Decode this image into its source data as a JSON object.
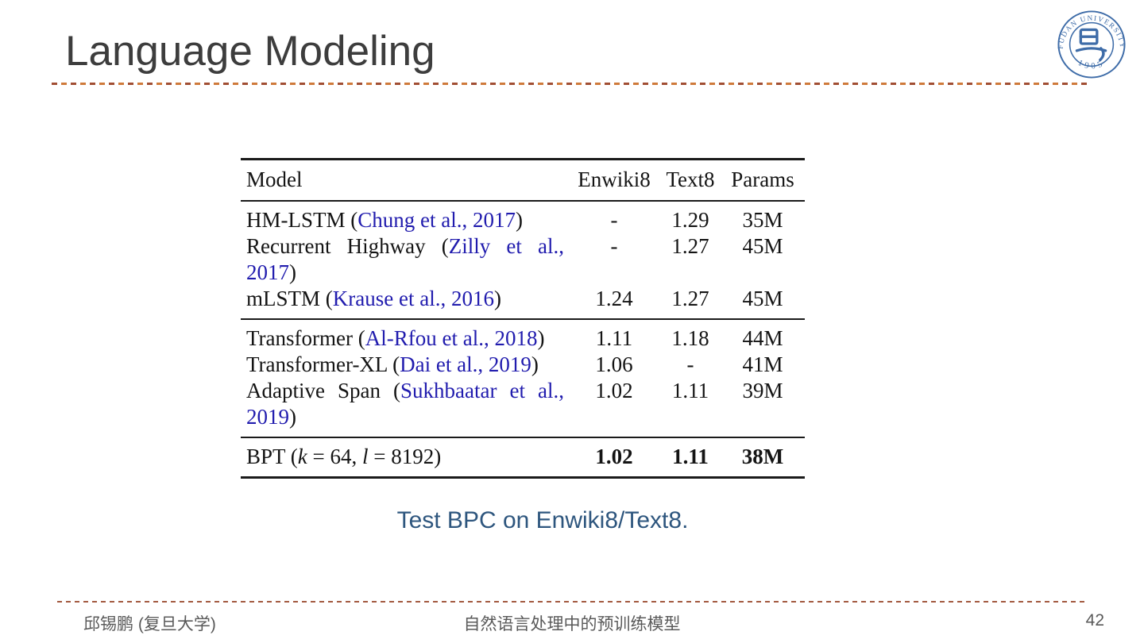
{
  "slide": {
    "title": "Language Modeling",
    "caption": "Test BPC on Enwiki8/Text8.",
    "page_number": "42",
    "footer_left": "邱锡鹏 (复旦大学)",
    "footer_center": "自然语言处理中的预训练模型",
    "accent_color": "#c2632f",
    "caption_color": "#2e567e"
  },
  "logo": {
    "name": "fudan-university-seal",
    "ring_text": "FUDAN UNIVERSITY",
    "year": "1905",
    "color": "#3e6ca8"
  },
  "chart_data": {
    "type": "table",
    "title": "Test BPC on Enwiki8/Text8.",
    "columns": [
      "Model",
      "Enwiki8",
      "Text8",
      "Params"
    ],
    "rows": [
      [
        "HM-LSTM (Chung et al., 2017)",
        "-",
        "1.29",
        "35M"
      ],
      [
        "Recurrent Highway (Zilly et al., 2017)",
        "-",
        "1.27",
        "45M"
      ],
      [
        "mLSTM (Krause et al., 2016)",
        "1.24",
        "1.27",
        "45M"
      ],
      [
        "Transformer (Al-Rfou et al., 2018)",
        "1.11",
        "1.18",
        "44M"
      ],
      [
        "Transformer-XL (Dai et al., 2019)",
        "1.06",
        "-",
        "41M"
      ],
      [
        "Adaptive Span (Sukhbaatar et al., 2019)",
        "1.02",
        "1.11",
        "39M"
      ],
      [
        "BPT (k = 64, l = 8192)",
        "1.02",
        "1.11",
        "38M"
      ]
    ]
  },
  "table": {
    "headers": [
      "Model",
      "Enwiki8",
      "Text8",
      "Params"
    ],
    "cite_color": "#211cae",
    "groups": [
      {
        "rows": [
          {
            "model": [
              {
                "t": "HM-LSTM ("
              },
              {
                "t": "Chung et al., 2017",
                "c": "cite"
              },
              {
                "t": ")"
              }
            ],
            "values": [
              "-",
              "1.29",
              "35M"
            ]
          },
          {
            "model": [
              {
                "t": "Recurrent Highway ("
              },
              {
                "t": "Zilly et al., 2017",
                "c": "cite"
              },
              {
                "t": ")"
              }
            ],
            "values": [
              "-",
              "1.27",
              "45M"
            ],
            "wrap": true
          },
          {
            "model": [
              {
                "t": "mLSTM ("
              },
              {
                "t": "Krause et al., 2016",
                "c": "cite"
              },
              {
                "t": ")"
              }
            ],
            "values": [
              "1.24",
              "1.27",
              "45M"
            ]
          }
        ]
      },
      {
        "rows": [
          {
            "model": [
              {
                "t": "Transformer ("
              },
              {
                "t": "Al-Rfou et al., 2018",
                "c": "cite"
              },
              {
                "t": ")"
              }
            ],
            "values": [
              "1.11",
              "1.18",
              "44M"
            ]
          },
          {
            "model": [
              {
                "t": "Transformer-XL ("
              },
              {
                "t": "Dai et al., 2019",
                "c": "cite"
              },
              {
                "t": ")"
              }
            ],
            "values": [
              "1.06",
              "-",
              "41M"
            ]
          },
          {
            "model": [
              {
                "t": "Adaptive Span ("
              },
              {
                "t": "Sukhbaatar et al., 2019",
                "c": "cite"
              },
              {
                "t": ")"
              }
            ],
            "values": [
              "1.02",
              "1.11",
              "39M"
            ],
            "wrap": true
          }
        ]
      },
      {
        "rows": [
          {
            "model": [
              {
                "t": "BPT ("
              },
              {
                "t": "k",
                "c": "math"
              },
              {
                "t": " = 64, "
              },
              {
                "t": "l",
                "c": "math"
              },
              {
                "t": " = 8192)"
              }
            ],
            "values": [
              "1.02",
              "1.11",
              "38M"
            ],
            "bold": true
          }
        ]
      }
    ]
  }
}
